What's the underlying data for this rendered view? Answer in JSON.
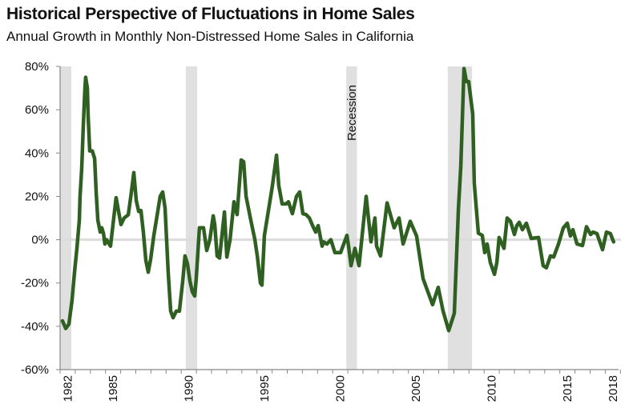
{
  "chart_data": {
    "type": "line",
    "title": "Historical Perspective of Fluctuations in Home Sales",
    "subtitle": "Annual Growth in Monthly Non-Distressed Home Sales in California",
    "xlabel": "",
    "ylabel": "",
    "ylim": [
      -60,
      80
    ],
    "xlim": [
      1982,
      2019
    ],
    "y_ticks": [
      -60,
      -40,
      -20,
      0,
      20,
      40,
      60,
      80
    ],
    "y_tick_labels": [
      "-60%",
      "-40%",
      "-20%",
      "0%",
      "20%",
      "40%",
      "60%",
      "80%"
    ],
    "x_tick_labels": [
      "1982",
      "1985",
      "1990",
      "1995",
      "2000",
      "2005",
      "2010",
      "2015",
      "2018"
    ],
    "grid": false,
    "line_color": "#2f5f21",
    "band_color": "#e0e0e0",
    "band_annotation": "Recession",
    "recession_bands": [
      [
        1982.0,
        1982.74
      ],
      [
        1990.3,
        1991.05
      ],
      [
        2000.9,
        2001.6
      ],
      [
        2007.6,
        2009.2
      ]
    ],
    "series": [
      {
        "x": [
          1982.16,
          1982.37,
          1982.58,
          1982.79,
          1982.95,
          1983.11,
          1983.27,
          1983.32,
          1983.43,
          1983.53,
          1983.64,
          1983.69,
          1983.8,
          1983.85,
          1983.96,
          1984.12,
          1984.28,
          1984.38,
          1984.49,
          1984.65,
          1984.75,
          1984.86,
          1984.96,
          1985.07,
          1985.33,
          1985.7,
          1985.86,
          1986.02,
          1986.23,
          1986.5,
          1986.71,
          1986.87,
          1987.03,
          1987.19,
          1987.34,
          1987.5,
          1987.66,
          1987.82,
          1987.98,
          1988.19,
          1988.4,
          1988.61,
          1988.77,
          1988.93,
          1989.14,
          1989.3,
          1989.46,
          1989.67,
          1989.88,
          1990.1,
          1990.25,
          1990.41,
          1990.57,
          1990.73,
          1990.89,
          1990.99,
          1991.2,
          1991.47,
          1991.68,
          1991.89,
          1992.11,
          1992.21,
          1992.37,
          1992.53,
          1992.85,
          1993.01,
          1993.22,
          1993.48,
          1993.69,
          1993.96,
          1994.12,
          1994.28,
          1994.59,
          1994.86,
          1995.02,
          1995.23,
          1995.33,
          1995.49,
          1995.86,
          1996.02,
          1996.29,
          1996.44,
          1996.66,
          1996.92,
          1997.08,
          1997.34,
          1997.61,
          1997.82,
          1998.03,
          1998.24,
          1998.46,
          1998.67,
          1998.88,
          1999.04,
          1999.3,
          1999.41,
          1999.62,
          1999.88,
          2000.15,
          2000.52,
          2000.94,
          2001.05,
          2001.21,
          2001.47,
          2001.74,
          2002.21,
          2002.53,
          2002.79,
          2002.9,
          2003.16,
          2003.59,
          2004.06,
          2004.38,
          2004.65,
          2005.12,
          2005.54,
          2005.97,
          2006.6,
          2006.97,
          2007.29,
          2007.66,
          2008.03,
          2008.3,
          2008.46,
          2008.67,
          2008.83,
          2008.98,
          2009.25,
          2009.35,
          2009.62,
          2009.88,
          2010.04,
          2010.2,
          2010.41,
          2010.68,
          2010.84,
          2010.99,
          2011.31,
          2011.52,
          2011.74,
          2012.0,
          2012.16,
          2012.32,
          2012.53,
          2012.79,
          2013.11,
          2013.59,
          2013.9,
          2014.11,
          2014.38,
          2014.59,
          2014.91,
          2015.23,
          2015.49,
          2015.7,
          2015.86,
          2016.13,
          2016.5,
          2016.76,
          2017.03,
          2017.19,
          2017.45,
          2017.82,
          2018.08,
          2018.34,
          2018.55
        ],
        "y": [
          -37.5,
          -41,
          -39,
          -28,
          -15,
          -4,
          9,
          20,
          33,
          52,
          70,
          75,
          70,
          57,
          41,
          41,
          37.5,
          22,
          9,
          3.5,
          5.5,
          3,
          -2,
          0,
          -3,
          19.4,
          13,
          7,
          10,
          11.5,
          22,
          31,
          18,
          13,
          13.5,
          3.5,
          -9.5,
          -15,
          -9,
          2,
          11,
          20,
          22,
          14.6,
          -15,
          -33,
          -36,
          -33,
          -33,
          -19,
          -7.5,
          -11,
          -19,
          -24,
          -26,
          -18,
          5.5,
          5.5,
          -5,
          0,
          11,
          7,
          -7.5,
          -8.5,
          12.8,
          -8,
          0,
          17.5,
          11.6,
          36.8,
          36,
          20,
          9,
          0,
          -7.5,
          -20,
          -21,
          2,
          18,
          25,
          39,
          25,
          16.5,
          16.5,
          17.5,
          12,
          20,
          22,
          12,
          11.6,
          10,
          6.5,
          3.5,
          6.5,
          -3,
          -1,
          -2,
          0,
          -6,
          -6,
          2,
          -3,
          -12,
          -4,
          -12,
          20,
          -1,
          10,
          -3,
          -7.5,
          17,
          5.5,
          10,
          -2,
          8.5,
          1.7,
          -18,
          -30,
          -22,
          -33,
          -42,
          -34,
          14,
          34,
          79,
          73,
          73,
          58,
          26,
          3,
          2,
          -6,
          -2,
          -10.5,
          -16,
          -10.5,
          1,
          -4,
          10,
          8.5,
          2.4,
          6.5,
          8,
          4.6,
          7.6,
          0.6,
          1,
          -12,
          -13,
          -7.5,
          -8,
          -2,
          5.4,
          7.6,
          1.7,
          4.6,
          -2,
          -2.7,
          6,
          2.4,
          3.5,
          2.8,
          -4.6,
          3.5,
          2.8,
          -1
        ]
      }
    ]
  }
}
